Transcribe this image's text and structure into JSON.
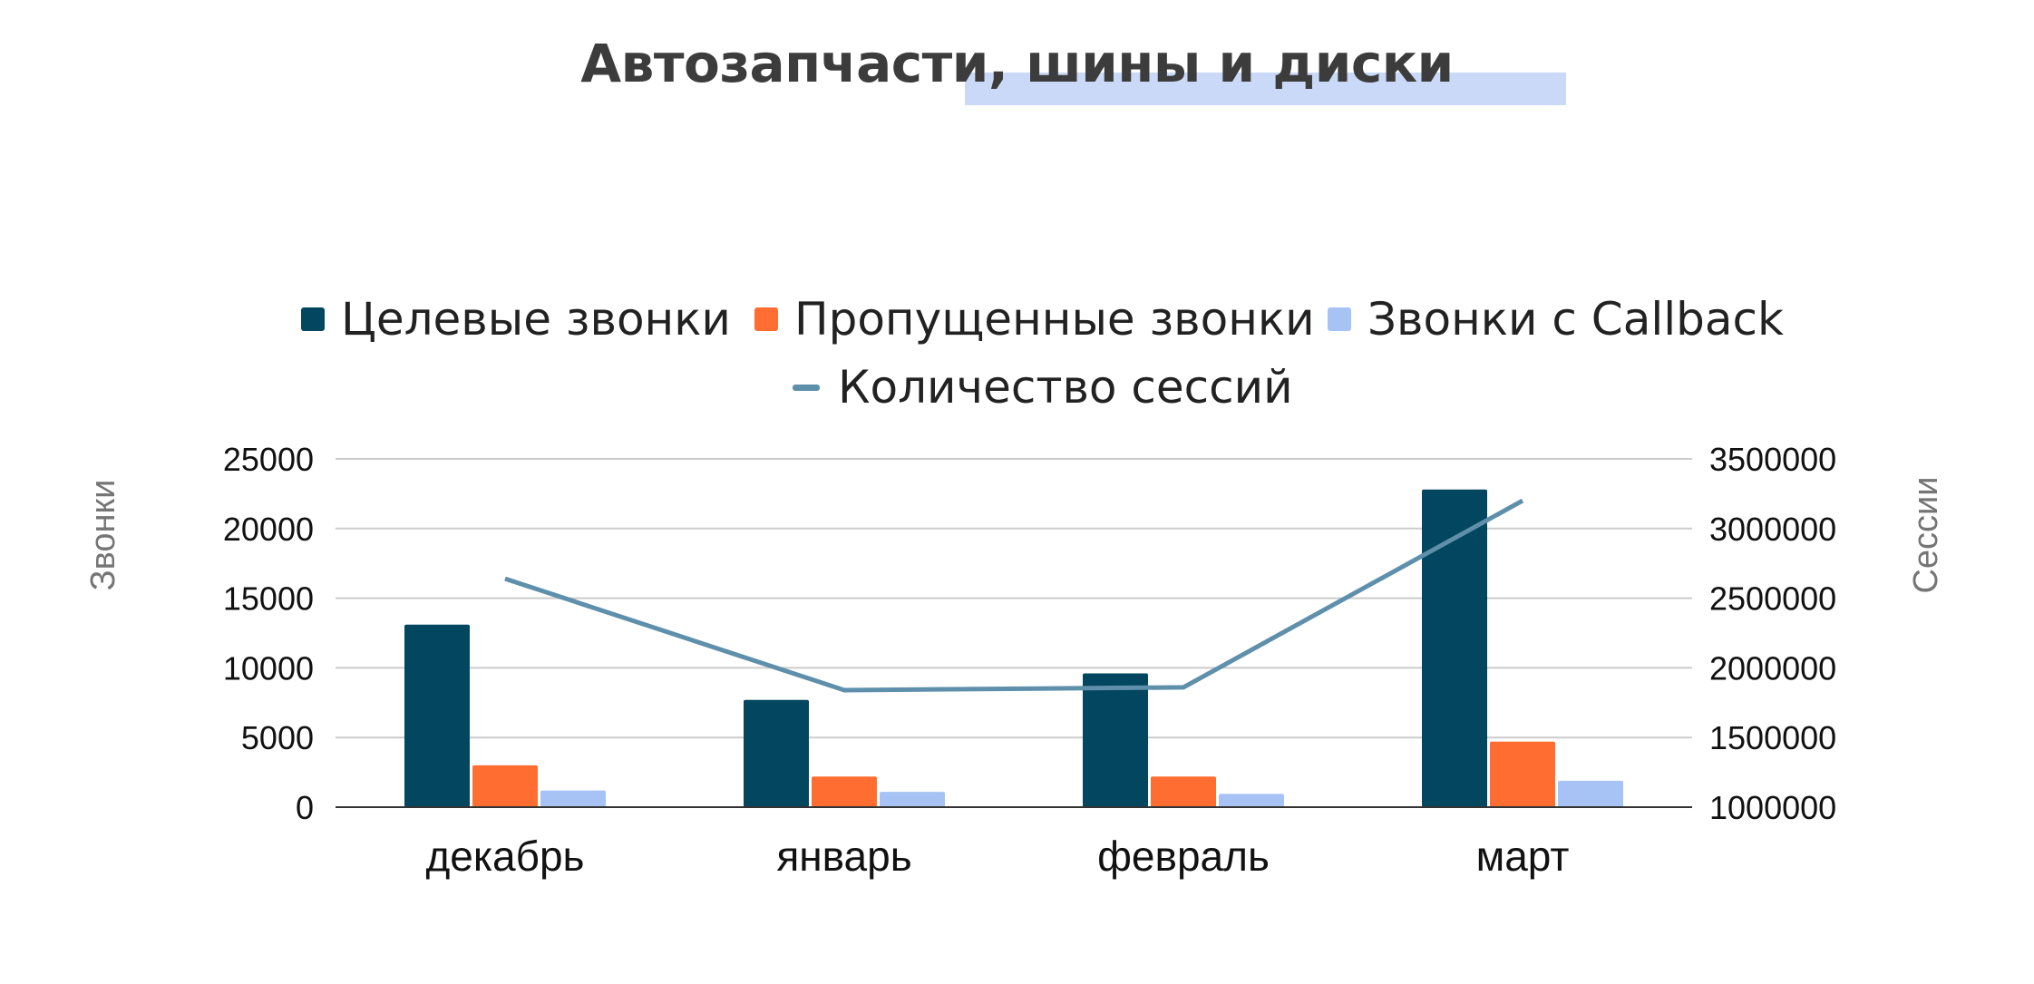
{
  "title": "Автозапчасти, шины и диски",
  "colors": {
    "title_highlight": "#c9d9f7",
    "targeted": "#02475f",
    "missed": "#ff6d31",
    "callback": "#a7c3f5",
    "sessions": "#5e8fab",
    "grid": "#cccccc",
    "axis_text": "#111111",
    "axis_title": "#757575"
  },
  "chart_data": {
    "type": "bar",
    "title": "Автозапчасти, шины и диски",
    "categories": [
      "декабрь",
      "январь",
      "февраль",
      "март"
    ],
    "series": [
      {
        "name": "Целевые звонки",
        "type": "bar",
        "axis": "left",
        "color": "#02475f",
        "values": [
          13100,
          7700,
          9600,
          22800
        ]
      },
      {
        "name": "Пропущенные звонки",
        "type": "bar",
        "axis": "left",
        "color": "#ff6d31",
        "values": [
          3000,
          2200,
          2200,
          4700
        ]
      },
      {
        "name": "Звонки с Callback",
        "type": "bar",
        "axis": "left",
        "color": "#a7c3f5",
        "values": [
          1200,
          1100,
          950,
          1900
        ]
      },
      {
        "name": "Количество сессий",
        "type": "line",
        "axis": "right",
        "color": "#5e8fab",
        "values": [
          2640000,
          1840000,
          1860000,
          3200000
        ]
      }
    ],
    "y_left": {
      "label": "Звонки",
      "ylim": [
        0,
        25000
      ],
      "ticks": [
        "0",
        "5000",
        "10000",
        "15000",
        "20000",
        "25000"
      ]
    },
    "y_right": {
      "label": "Сессии",
      "ylim": [
        1000000,
        3500000
      ],
      "ticks": [
        "1000000",
        "1500000",
        "2000000",
        "2500000",
        "3000000",
        "3500000"
      ]
    },
    "grid": true,
    "legend_position": "top"
  }
}
